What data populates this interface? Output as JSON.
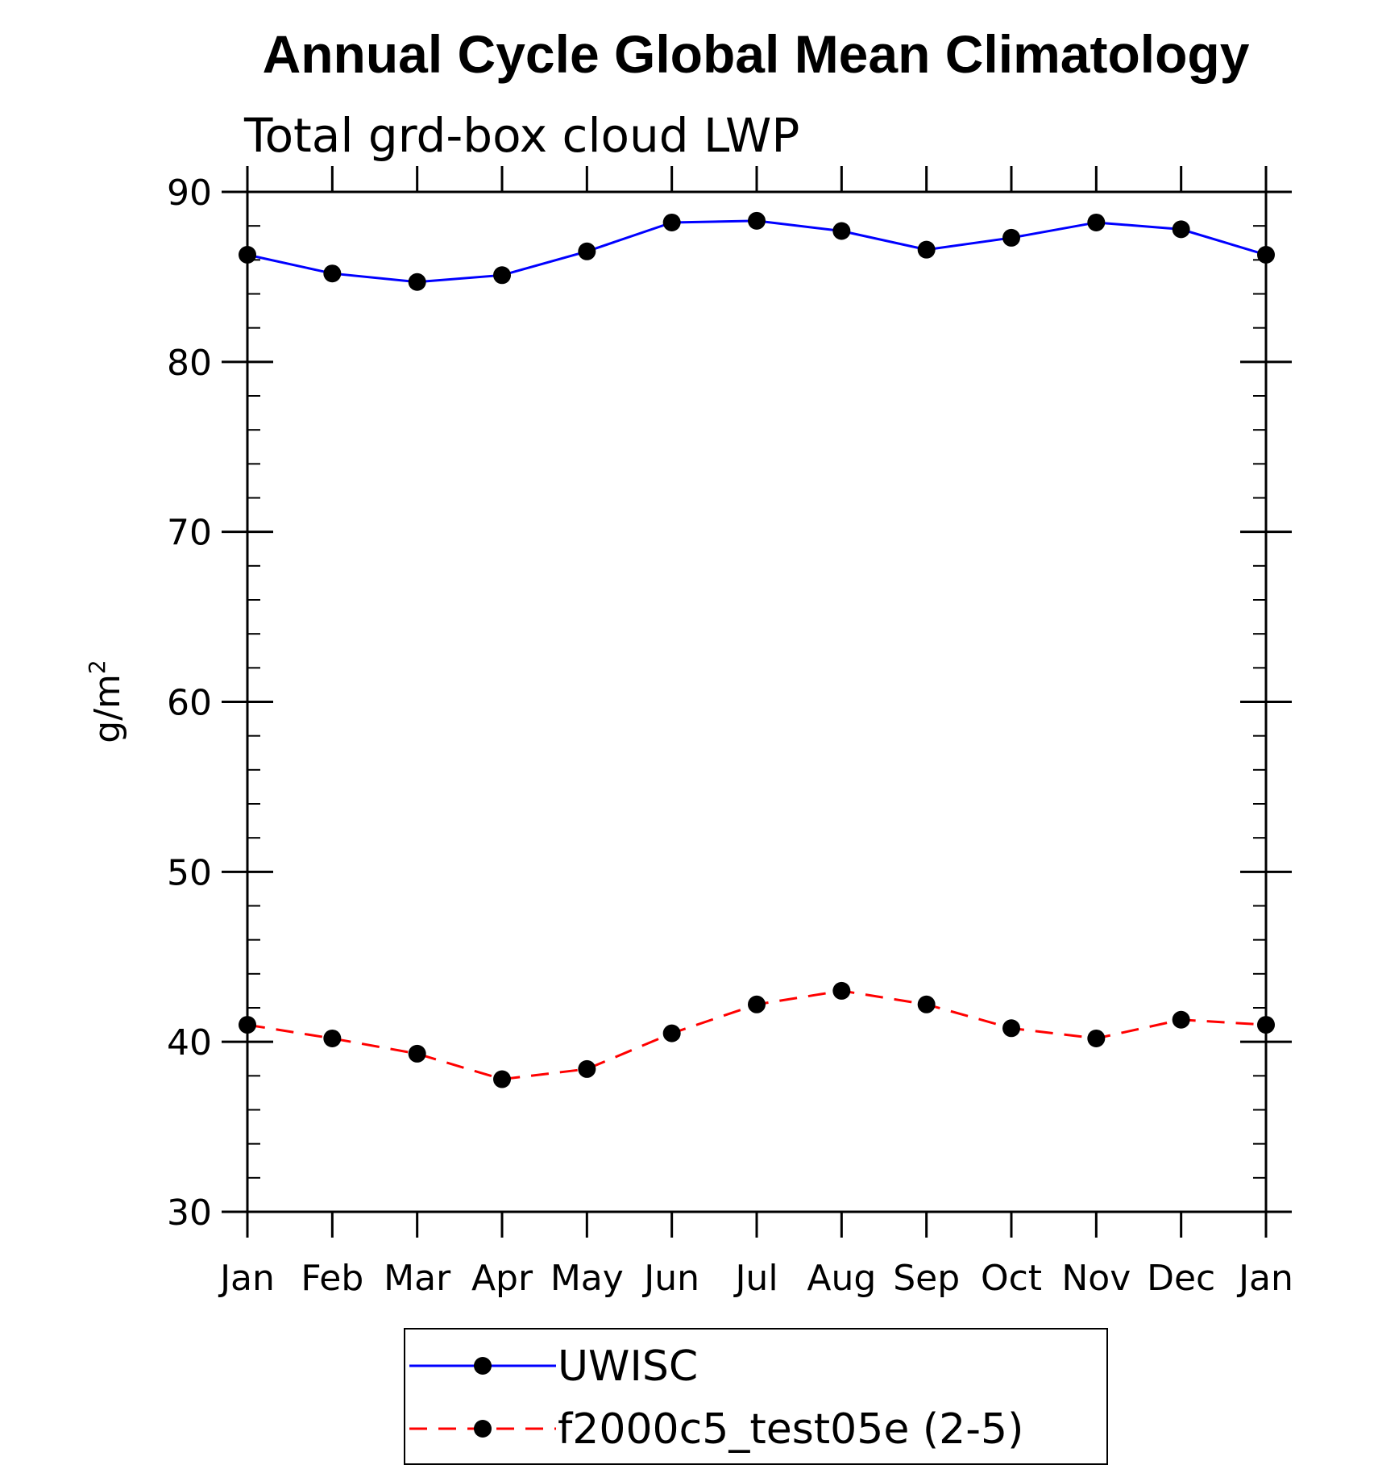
{
  "chart_data": {
    "type": "line",
    "title": "Annual Cycle Global Mean Climatology",
    "subtitle": "Total grd-box cloud LWP",
    "ylabel_base": "g/m",
    "ylabel_sup": "2",
    "categories": [
      "Jan",
      "Feb",
      "Mar",
      "Apr",
      "May",
      "Jun",
      "Jul",
      "Aug",
      "Sep",
      "Oct",
      "Nov",
      "Dec",
      "Jan"
    ],
    "ylim": [
      30,
      90
    ],
    "yticks": [
      30,
      40,
      50,
      60,
      70,
      80,
      90
    ],
    "ytick_labels": [
      "30",
      "40",
      "50",
      "60",
      "70",
      "80",
      "90"
    ],
    "series": [
      {
        "name": "UWISC",
        "color": "#0000ff",
        "dash": "solid",
        "values": [
          86.3,
          85.2,
          84.7,
          85.1,
          86.5,
          88.2,
          88.3,
          87.7,
          86.6,
          87.3,
          88.2,
          87.8,
          86.3
        ]
      },
      {
        "name": "f2000c5_test05e (2-5)",
        "color": "#ff0000",
        "dash": "dashed",
        "values": [
          41.0,
          40.2,
          39.3,
          37.8,
          38.4,
          40.5,
          42.2,
          43.0,
          42.2,
          40.8,
          40.2,
          41.3,
          41.0
        ]
      }
    ],
    "grid": false,
    "legend_position": "bottom"
  }
}
